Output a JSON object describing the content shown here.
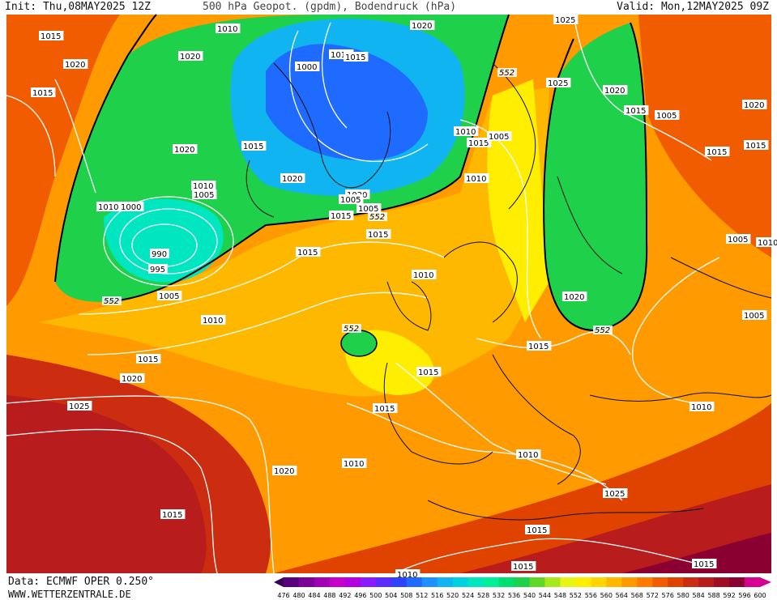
{
  "header": {
    "init": "Init: Thu,08MAY2025 12Z",
    "title": "500 hPa Geopot. (gpdm), Bodendruck (hPa)",
    "valid": "Valid: Mon,12MAY2025 09Z"
  },
  "footer": {
    "data_source": "Data: ECMWF OPER 0.250°",
    "website": "WWW.WETTERZENTRALE.DE"
  },
  "legend": {
    "levels": [
      "476",
      "480",
      "484",
      "488",
      "492",
      "496",
      "500",
      "504",
      "508",
      "512",
      "516",
      "520",
      "524",
      "528",
      "532",
      "536",
      "540",
      "544",
      "548",
      "552",
      "556",
      "560",
      "564",
      "568",
      "572",
      "576",
      "580",
      "584",
      "588",
      "592",
      "596",
      "600"
    ],
    "colors": [
      "#3a0057",
      "#5a007f",
      "#7d0099",
      "#a300b5",
      "#c800cc",
      "#b400e0",
      "#8a1aff",
      "#5b2cff",
      "#2e43ff",
      "#1f6aff",
      "#1e90ff",
      "#10b4f0",
      "#00d0e0",
      "#00e6c0",
      "#00f09a",
      "#00e070",
      "#1fd04a",
      "#60d82a",
      "#a8e61e",
      "#e8f414",
      "#ffee00",
      "#ffd400",
      "#ffb800",
      "#ff9a00",
      "#ff7a00",
      "#f25c00",
      "#e04200",
      "#cc2c10",
      "#b81c1c",
      "#a00e24",
      "#8a0030",
      "#d80090"
    ]
  },
  "pressure_labels": [
    "1015",
    "1020",
    "1020",
    "1015",
    "1020",
    "1010",
    "1015",
    "1015",
    "1020",
    "1000",
    "1015",
    "1020",
    "1025",
    "1020",
    "1015",
    "1005",
    "1010",
    "1015",
    "1005",
    "1010",
    "1020",
    "1015",
    "1015",
    "1010",
    "1000",
    "1005",
    "1010",
    "990",
    "995",
    "1005",
    "1010",
    "1015",
    "1020",
    "1025",
    "1020",
    "1015",
    "1010",
    "1015",
    "1015",
    "1015",
    "1010",
    "1015",
    "1015",
    "1015",
    "1020",
    "1025",
    "1010",
    "1020",
    "1005",
    "1010",
    "1005",
    "1015",
    "1015",
    "1010",
    "1015",
    "1005",
    "1005",
    "1025",
    "1010"
  ],
  "geopot_labels": [
    "552",
    "552",
    "552",
    "552",
    "552"
  ]
}
